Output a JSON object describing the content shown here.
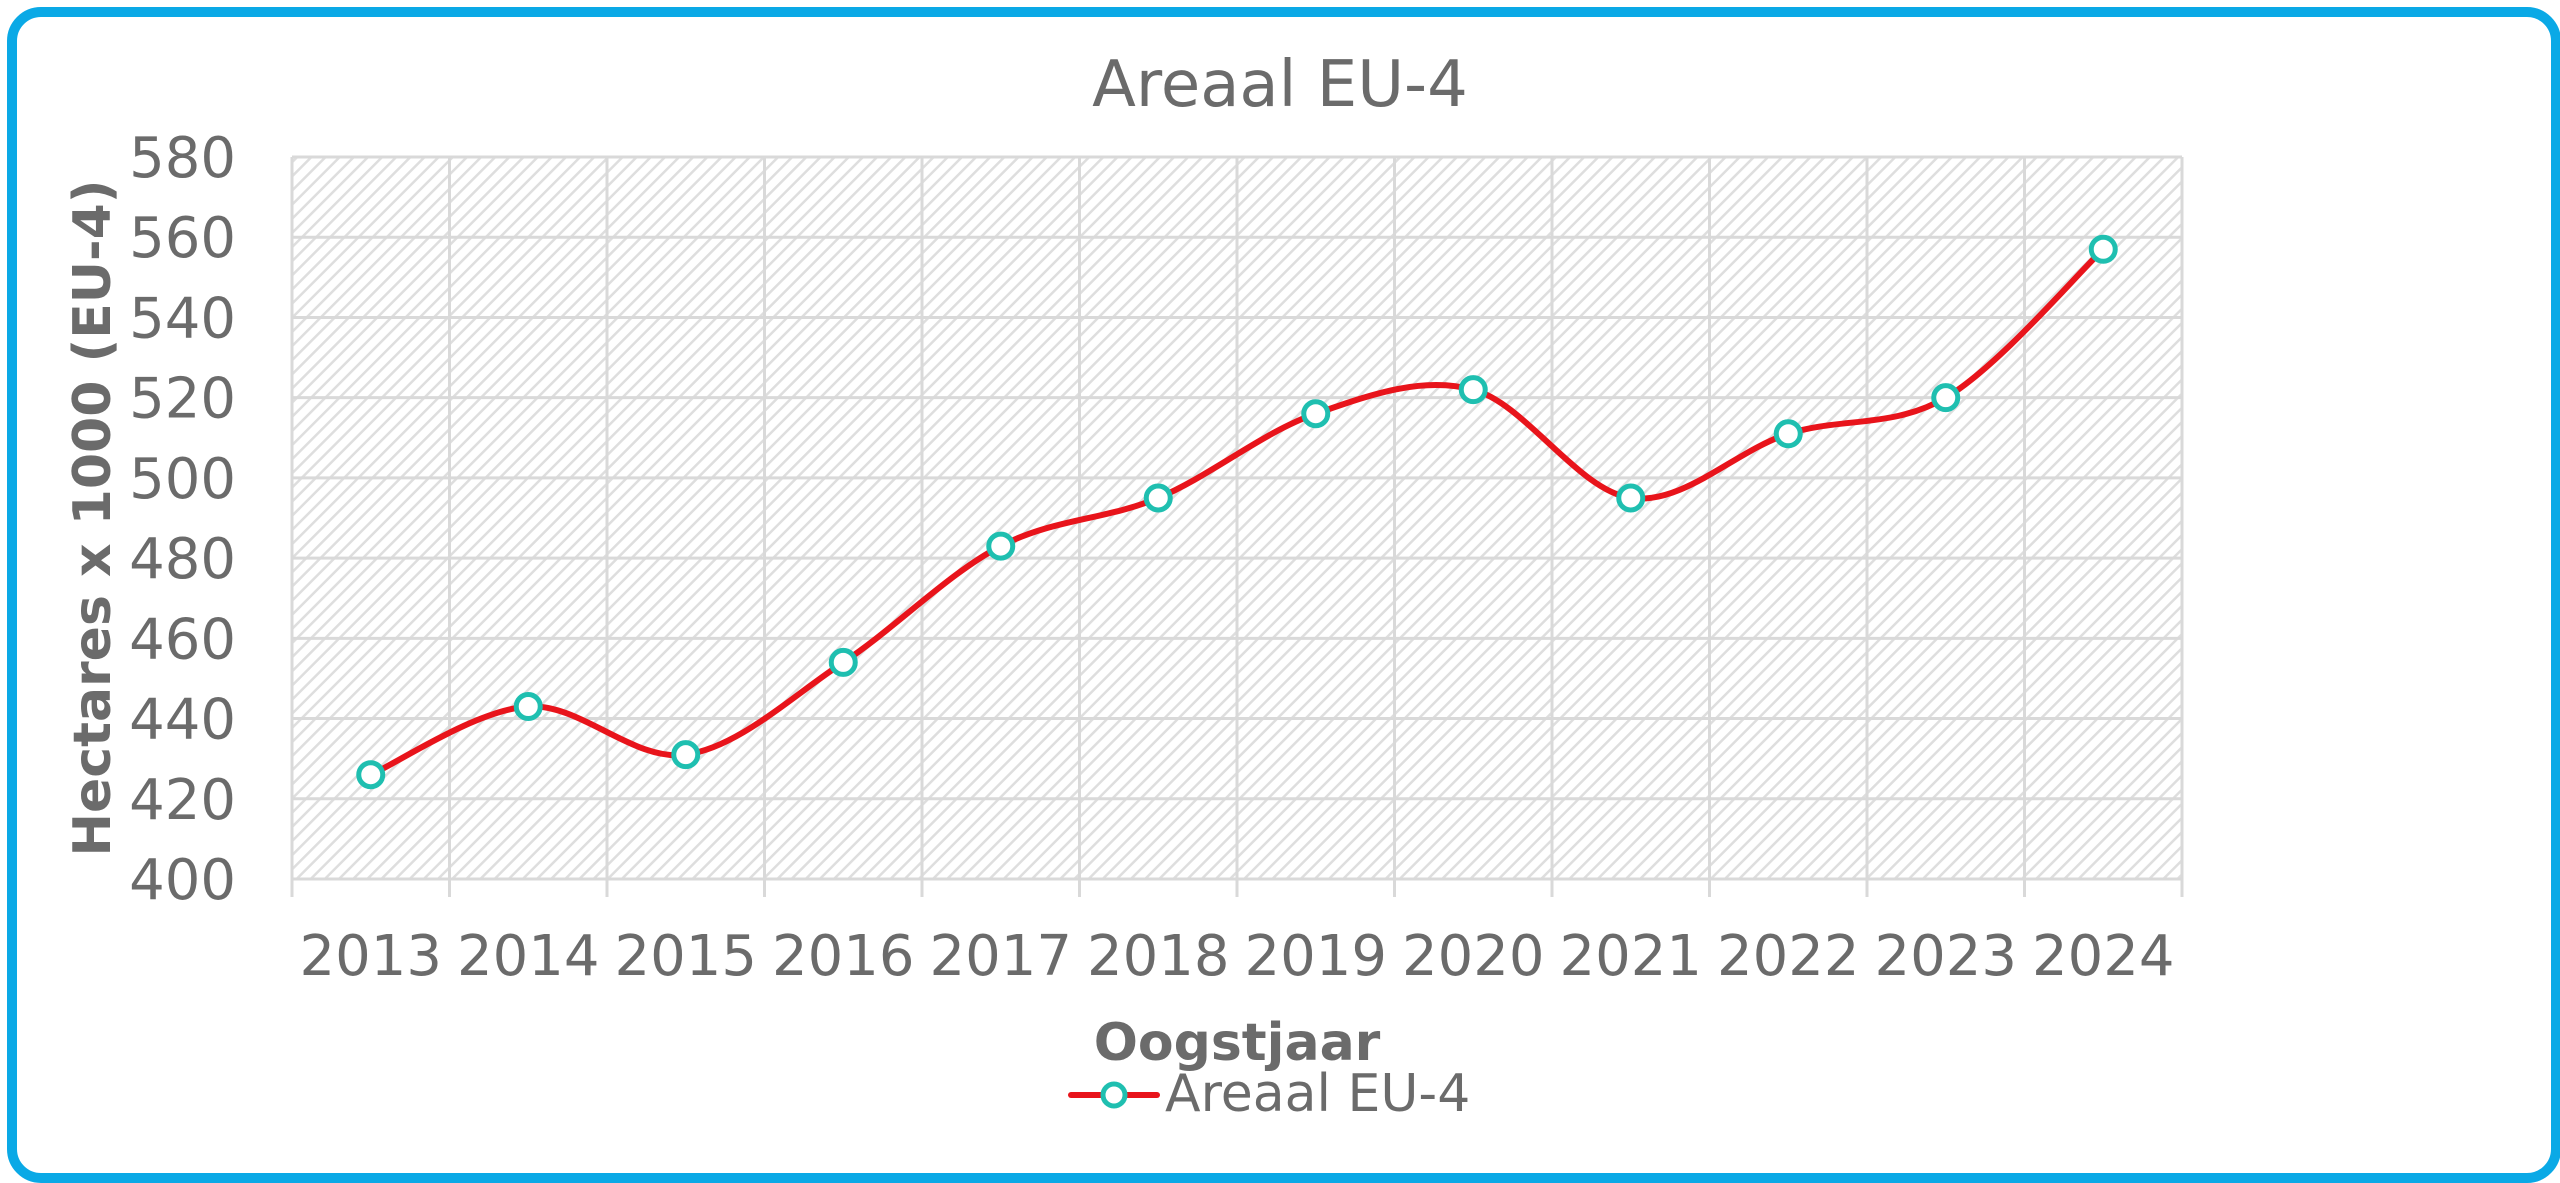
{
  "chart_data": {
    "type": "line",
    "title": "Areaal EU-4",
    "xlabel": "Oogstjaar",
    "ylabel": "Hectares x 1000 (EU-4)",
    "categories": [
      "2013",
      "2014",
      "2015",
      "2016",
      "2017",
      "2018",
      "2019",
      "2020",
      "2021",
      "2022",
      "2023",
      "2024"
    ],
    "series": [
      {
        "name": "Areaal EU-4",
        "values": [
          426,
          443,
          431,
          454,
          483,
          495,
          516,
          522,
          495,
          511,
          520,
          557
        ]
      }
    ],
    "ylim": [
      400,
      580
    ],
    "yticks": [
      "400",
      "420",
      "440",
      "460",
      "480",
      "500",
      "520",
      "540",
      "560",
      "580"
    ],
    "smoothed": true,
    "grid": true,
    "legend": "bottom",
    "colors": {
      "line": "#e8141b",
      "marker_edge": "#1fbfb0",
      "marker_fill": "#ffffff",
      "frame": "#0aa9e6",
      "grid": "#d9d9d9",
      "hatch": "#e2e2e2",
      "text": "#6b6b6b"
    }
  }
}
